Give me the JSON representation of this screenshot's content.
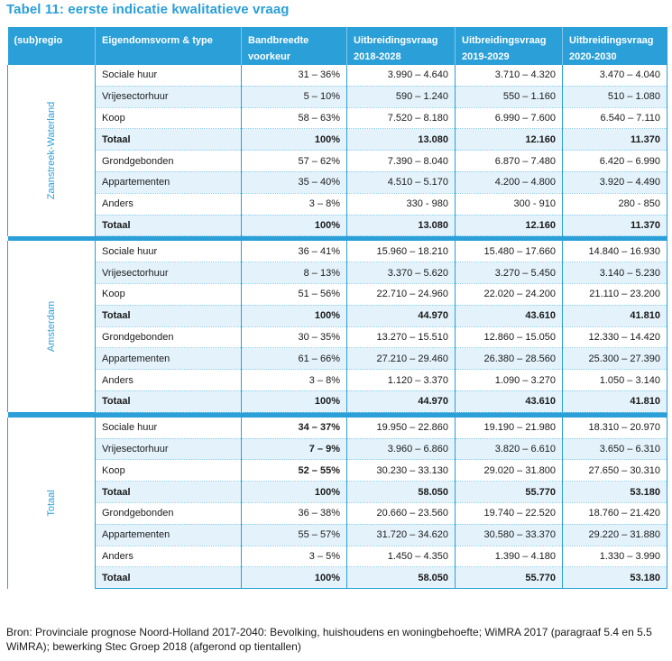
{
  "title": "Tabel 11: eerste indicatie kwalitatieve vraag",
  "header": {
    "col_region": "(sub)regio",
    "col_type": "Eigendomsvorm & type",
    "col_band_1": "Bandbreedte",
    "col_band_2": "voorkeur",
    "col_y1_1": "Uitbreidingsvraag",
    "col_y1_2": "2018-2028",
    "col_y2_1": "Uitbreidingsvraag",
    "col_y2_2": "2019-2029",
    "col_y3_1": "Uitbreidingsvraag",
    "col_y3_2": "2020-2030"
  },
  "regions": [
    {
      "name": "Zaanstreek-Waterland",
      "rows": [
        {
          "label": "Sociale huur",
          "band": "31 – 36%",
          "y1": "3.990 – 4.640",
          "y2": "3.710 – 4.320",
          "y3": "3.470 – 4.040"
        },
        {
          "label": "Vrijesectorhuur",
          "band": "5 – 10%",
          "y1": "590 – 1.240",
          "y2": "550 – 1.160",
          "y3": "510 – 1.080"
        },
        {
          "label": "Koop",
          "band": "58 – 63%",
          "y1": "7.520 – 8.180",
          "y2": "6.990 – 7.600",
          "y3": "6.540 – 7.110"
        },
        {
          "label": "Totaal",
          "band": "100%",
          "y1": "13.080",
          "y2": "12.160",
          "y3": "11.370"
        },
        {
          "label": "Grondgebonden",
          "band": "57 – 62%",
          "y1": "7.390 – 8.040",
          "y2": "6.870 – 7.480",
          "y3": "6.420 – 6.990"
        },
        {
          "label": "Appartementen",
          "band": "35 – 40%",
          "y1": "4.510 – 5.170",
          "y2": "4.200 – 4.800",
          "y3": "3.920 – 4.490"
        },
        {
          "label": "Anders",
          "band": "3 – 8%",
          "y1": "330 - 980",
          "y2": "300 - 910",
          "y3": "280 - 850"
        },
        {
          "label": "Totaal",
          "band": "100%",
          "y1": "13.080",
          "y2": "12.160",
          "y3": "11.370"
        }
      ]
    },
    {
      "name": "Amsterdam",
      "rows": [
        {
          "label": "Sociale huur",
          "band": "36 – 41%",
          "y1": "15.960 – 18.210",
          "y2": "15.480 – 17.660",
          "y3": "14.840 – 16.930"
        },
        {
          "label": "Vrijesectorhuur",
          "band": "8 – 13%",
          "y1": "3.370 – 5.620",
          "y2": "3.270 – 5.450",
          "y3": "3.140 – 5.230"
        },
        {
          "label": "Koop",
          "band": "51 – 56%",
          "y1": "22.710 – 24.960",
          "y2": "22.020 – 24.200",
          "y3": "21.110 – 23.200"
        },
        {
          "label": "Totaal",
          "band": "100%",
          "y1": "44.970",
          "y2": "43.610",
          "y3": "41.810"
        },
        {
          "label": "Grondgebonden",
          "band": "30 – 35%",
          "y1": "13.270 – 15.510",
          "y2": "12.860 – 15.050",
          "y3": "12.330 – 14.420"
        },
        {
          "label": "Appartementen",
          "band": "61 – 66%",
          "y1": "27.210 – 29.460",
          "y2": "26.380 – 28.560",
          "y3": "25.300 – 27.390"
        },
        {
          "label": "Anders",
          "band": "3 – 8%",
          "y1": "1.120 – 3.370",
          "y2": "1.090 – 3.270",
          "y3": "1.050 – 3.140"
        },
        {
          "label": "Totaal",
          "band": "100%",
          "y1": "44.970",
          "y2": "43.610",
          "y3": "41.810"
        }
      ]
    },
    {
      "name": "Totaal",
      "rows": [
        {
          "label": "Sociale huur",
          "band": "34 – 37%",
          "y1": "19.950 – 22.860",
          "y2": "19.190 – 21.980",
          "y3": "18.310 – 20.970"
        },
        {
          "label": "Vrijesectorhuur",
          "band": "7 – 9%",
          "y1": "3.960 – 6.860",
          "y2": "3.820 – 6.610",
          "y3": "3.650 – 6.310"
        },
        {
          "label": "Koop",
          "band": "52 – 55%",
          "y1": "30.230 – 33.130",
          "y2": "29.020 – 31.800",
          "y3": "27.650 – 30.310"
        },
        {
          "label": "Totaal",
          "band": "100%",
          "y1": "58.050",
          "y2": "55.770",
          "y3": "53.180"
        },
        {
          "label": "Grondgebonden",
          "band": "36 – 38%",
          "y1": "20.660 – 23.560",
          "y2": "19.740 – 22.520",
          "y3": "18.760 – 21.420"
        },
        {
          "label": "Appartementen",
          "band": "55 – 57%",
          "y1": "31.720 – 34.620",
          "y2": "30.580 – 33.370",
          "y3": "29.220 – 31.880"
        },
        {
          "label": "Anders",
          "band": "3 – 5%",
          "y1": "1.450 – 4.350",
          "y2": "1.390 – 4.180",
          "y3": "1.330 – 3.990"
        },
        {
          "label": "Totaal",
          "band": "100%",
          "y1": "58.050",
          "y2": "55.770",
          "y3": "53.180"
        }
      ]
    }
  ],
  "source": "Bron: Provinciale prognose Noord-Holland 2017-2040: Bevolking, huishoudens en woningbehoefte; WiMRA 2017 (paragraaf 5.4 en 5.5 WiMRA); bewerking Stec Groep 2018 (afgerond op tientallen)",
  "colors": {
    "accent": "#2a9fd8",
    "row_alt": "#e4f2fb"
  }
}
